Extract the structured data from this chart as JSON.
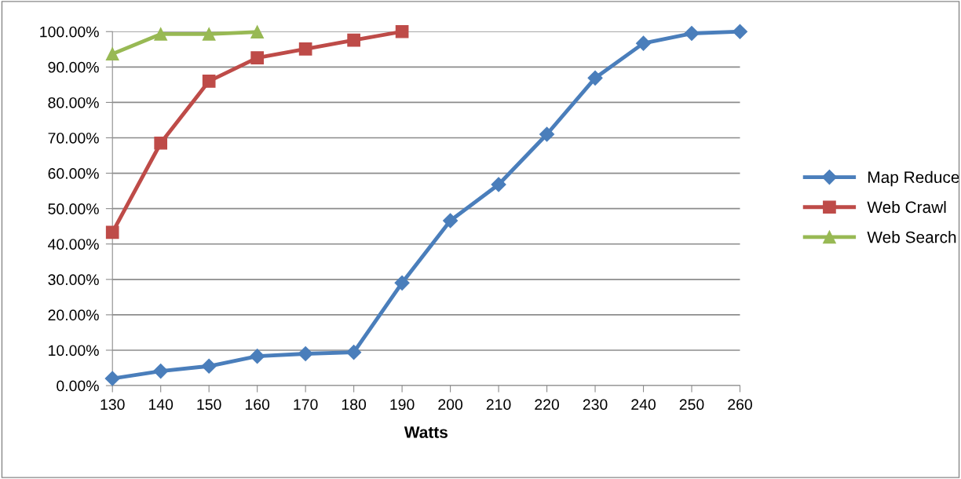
{
  "chart_data": {
    "type": "line",
    "xlabel": "Watts",
    "categories": [
      "130",
      "140",
      "150",
      "160",
      "170",
      "180",
      "190",
      "200",
      "210",
      "220",
      "230",
      "240",
      "250",
      "260"
    ],
    "series": [
      {
        "name": "Map Reduce",
        "color": "#4a7ebb",
        "marker": "diamond",
        "values": [
          2.0,
          4.1,
          5.5,
          8.3,
          9.0,
          9.4,
          29.0,
          46.6,
          56.8,
          71.0,
          86.9,
          96.7,
          99.5,
          100
        ]
      },
      {
        "name": "Web Crawl",
        "color": "#be4b48",
        "marker": "square",
        "values": [
          43.3,
          68.5,
          86.0,
          92.6,
          95.1,
          97.6,
          100,
          null,
          null,
          null,
          null,
          null,
          null,
          null
        ]
      },
      {
        "name": "Web Search",
        "color": "#98b954",
        "marker": "triangle",
        "values": [
          93.7,
          99.3,
          99.3,
          99.9,
          null,
          null,
          null,
          null,
          null,
          null,
          null,
          null,
          null,
          null
        ]
      }
    ],
    "ylim": [
      0,
      100
    ],
    "yticks": [
      {
        "value": 0,
        "label": "0.00%"
      },
      {
        "value": 10,
        "label": "10.00%"
      },
      {
        "value": 20,
        "label": "20.00%"
      },
      {
        "value": 30,
        "label": "30.00%"
      },
      {
        "value": 40,
        "label": "40.00%"
      },
      {
        "value": 50,
        "label": "50.00%"
      },
      {
        "value": 60,
        "label": "60.00%"
      },
      {
        "value": 70,
        "label": "70.00%"
      },
      {
        "value": 80,
        "label": "80.00%"
      },
      {
        "value": 90,
        "label": "90.00%"
      },
      {
        "value": 100,
        "label": "100.00%"
      }
    ],
    "grid": "y",
    "legend": "right",
    "line_style": "solid"
  }
}
